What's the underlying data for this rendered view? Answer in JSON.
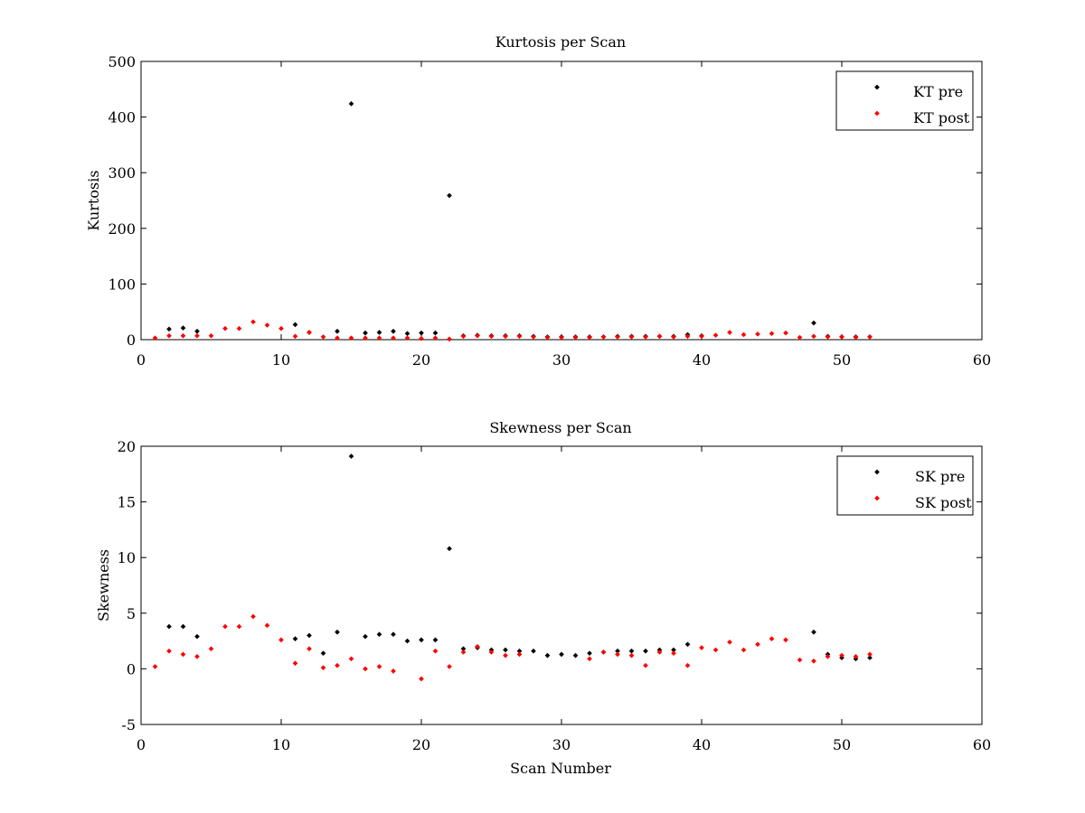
{
  "chart_data": [
    {
      "type": "scatter",
      "title": "Kurtosis per Scan",
      "xlabel": "",
      "ylabel": "Kurtosis",
      "xlim": [
        0,
        60
      ],
      "ylim": [
        0,
        500
      ],
      "xticks": [
        0,
        10,
        20,
        30,
        40,
        50,
        60
      ],
      "yticks": [
        0,
        100,
        200,
        300,
        400,
        500
      ],
      "legend_position": "top-right",
      "grid": false,
      "series": [
        {
          "name": "KT pre",
          "color": "#000000",
          "x": [
            2,
            3,
            4,
            11,
            12,
            14,
            15,
            16,
            17,
            18,
            19,
            20,
            21,
            22,
            23,
            24,
            25,
            26,
            27,
            28,
            29,
            30,
            31,
            32,
            33,
            34,
            35,
            36,
            37,
            38,
            39,
            40,
            48,
            49,
            50,
            51,
            52
          ],
          "y": [
            19,
            21,
            15,
            27,
            13,
            15,
            424,
            12,
            13,
            15,
            11,
            12,
            12,
            259,
            7,
            8,
            7,
            7,
            7,
            6,
            5,
            5,
            5,
            5,
            5,
            6,
            6,
            6,
            6,
            6,
            9,
            7,
            30,
            6,
            5,
            5,
            5
          ]
        },
        {
          "name": "KT post",
          "color": "#ff0000",
          "x": [
            1,
            2,
            3,
            4,
            5,
            6,
            7,
            8,
            9,
            10,
            11,
            12,
            13,
            14,
            15,
            16,
            17,
            18,
            19,
            20,
            21,
            22,
            23,
            24,
            25,
            26,
            27,
            28,
            29,
            30,
            31,
            32,
            33,
            34,
            35,
            36,
            37,
            38,
            39,
            40,
            41,
            42,
            43,
            44,
            45,
            46,
            47,
            48,
            49,
            50,
            51,
            52
          ],
          "y": [
            3,
            7,
            7,
            7,
            7,
            20,
            20,
            32,
            26,
            20,
            6,
            13,
            5,
            3,
            3,
            3,
            3,
            3,
            3,
            2,
            3,
            1,
            6,
            7,
            6,
            6,
            6,
            5,
            4,
            4,
            4,
            4,
            5,
            5,
            5,
            5,
            6,
            5,
            6,
            6,
            8,
            13,
            9,
            10,
            11,
            12,
            4,
            6,
            5,
            5,
            4,
            5
          ]
        }
      ]
    },
    {
      "type": "scatter",
      "title": "Skewness per Scan",
      "xlabel": "Scan Number",
      "ylabel": "Skewness",
      "xlim": [
        0,
        60
      ],
      "ylim": [
        -5,
        20
      ],
      "xticks": [
        0,
        10,
        20,
        30,
        40,
        50,
        60
      ],
      "yticks": [
        -5,
        0,
        5,
        10,
        15,
        20
      ],
      "legend_position": "top-right",
      "grid": false,
      "series": [
        {
          "name": "SK pre",
          "color": "#000000",
          "x": [
            2,
            3,
            4,
            11,
            12,
            13,
            14,
            15,
            16,
            17,
            18,
            19,
            20,
            21,
            22,
            23,
            24,
            25,
            26,
            27,
            28,
            29,
            30,
            31,
            32,
            33,
            34,
            35,
            36,
            37,
            38,
            39,
            48,
            49,
            50,
            51,
            52
          ],
          "y": [
            3.8,
            3.8,
            2.9,
            2.7,
            3.0,
            1.4,
            3.3,
            19.1,
            2.9,
            3.1,
            3.1,
            2.5,
            2.6,
            2.6,
            10.8,
            1.8,
            1.9,
            1.7,
            1.7,
            1.6,
            1.6,
            1.2,
            1.3,
            1.2,
            1.4,
            1.5,
            1.6,
            1.6,
            1.6,
            1.7,
            1.7,
            2.2,
            3.3,
            1.3,
            1.0,
            0.9,
            1.0
          ]
        },
        {
          "name": "SK post",
          "color": "#ff0000",
          "x": [
            1,
            2,
            3,
            4,
            5,
            6,
            7,
            8,
            9,
            10,
            11,
            12,
            13,
            14,
            15,
            16,
            17,
            18,
            20,
            21,
            22,
            23,
            24,
            25,
            26,
            27,
            32,
            33,
            34,
            35,
            36,
            37,
            38,
            39,
            40,
            41,
            42,
            43,
            44,
            45,
            46,
            47,
            48,
            49,
            50,
            51,
            52
          ],
          "y": [
            0.2,
            1.6,
            1.3,
            1.1,
            1.8,
            3.8,
            3.8,
            4.7,
            3.9,
            2.6,
            0.5,
            1.8,
            0.1,
            0.3,
            0.9,
            0.0,
            0.2,
            -0.2,
            -0.9,
            1.6,
            0.2,
            1.5,
            2.0,
            1.5,
            1.2,
            1.3,
            0.9,
            1.5,
            1.3,
            1.2,
            0.3,
            1.5,
            1.4,
            0.3,
            1.9,
            1.7,
            2.4,
            1.7,
            2.2,
            2.7,
            2.6,
            0.8,
            0.7,
            1.1,
            1.2,
            1.1,
            1.3
          ]
        }
      ]
    }
  ]
}
